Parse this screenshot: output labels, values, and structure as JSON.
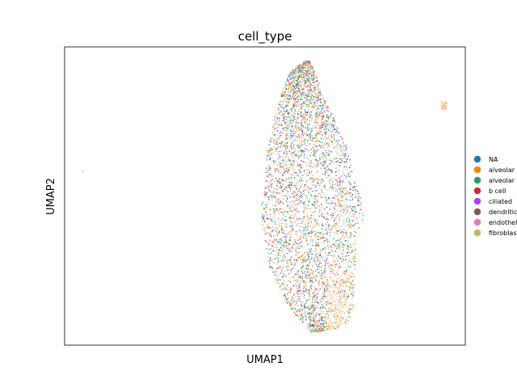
{
  "chart_data": {
    "type": "scatter",
    "title": "cell_type",
    "xlabel": "UMAP1",
    "ylabel": "UMAP2",
    "grid": false,
    "x_ticks": [],
    "y_ticks": [],
    "legend_placement": "right, outside plot",
    "legend": [
      {
        "label": "NA",
        "color": "#1f77b4"
      },
      {
        "label": "alveolar",
        "color": "#ff7f0e"
      },
      {
        "label": "alveolar",
        "color": "#279e68"
      },
      {
        "label": "b cell",
        "color": "#d62728"
      },
      {
        "label": "ciliated",
        "color": "#aa40fc"
      },
      {
        "label": "dendritic",
        "color": "#8c564b"
      },
      {
        "label": "endothel",
        "color": "#e377c2"
      },
      {
        "label": "fibroblas",
        "color": "#b5bd61"
      }
    ],
    "extra_point_colors": [
      "#17becf",
      "#aec7e8",
      "#ffbb78",
      "#98df8a",
      "#ff9896",
      "#c5b0d5",
      "#c49c94",
      "#f7b6d2",
      "#dbdb8d",
      "#9edae5"
    ]
  }
}
